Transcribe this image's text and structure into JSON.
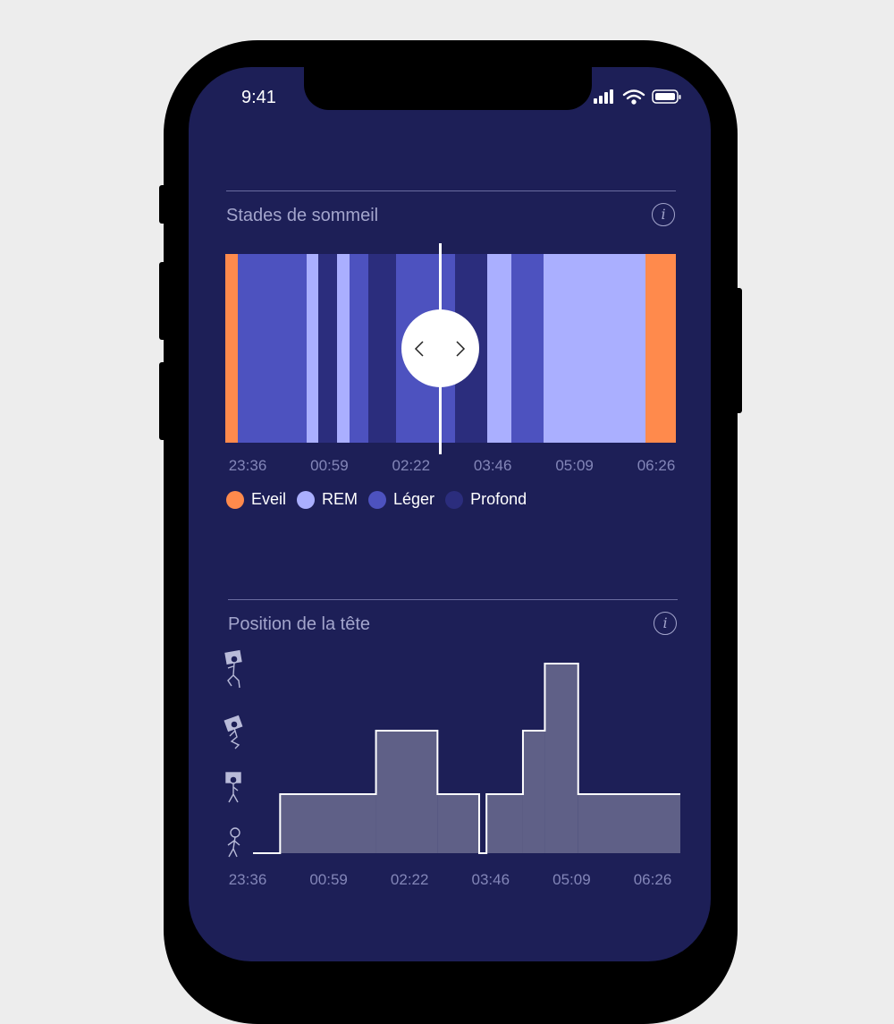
{
  "status_bar": {
    "time": "9:41"
  },
  "sleep_stages": {
    "title": "Stades de sommeil",
    "colors": {
      "Eveil": "#ff8a4c",
      "REM": "#aaafff",
      "Léger": "#4d52bf",
      "Profond": "#2b2d7d"
    },
    "start": "23:36",
    "end": "06:26",
    "segments": [
      {
        "stage": "Eveil",
        "start": "23:36"
      },
      {
        "stage": "Léger",
        "start": "23:47"
      },
      {
        "stage": "REM",
        "start": "00:50"
      },
      {
        "stage": "Profond",
        "start": "01:01"
      },
      {
        "stage": "REM",
        "start": "01:18"
      },
      {
        "stage": "Léger",
        "start": "01:29"
      },
      {
        "stage": "Profond",
        "start": "01:46"
      },
      {
        "stage": "Léger",
        "start": "02:11"
      },
      {
        "stage": "Profond",
        "start": "03:05"
      },
      {
        "stage": "REM",
        "start": "03:34"
      },
      {
        "stage": "Léger",
        "start": "03:56"
      },
      {
        "stage": "REM",
        "start": "04:26"
      },
      {
        "stage": "Eveil",
        "start": "05:58"
      }
    ],
    "ticks": [
      "23:36",
      "00:59",
      "02:22",
      "03:46",
      "05:09",
      "06:26"
    ],
    "legend": [
      "Eveil",
      "REM",
      "Léger",
      "Profond"
    ],
    "cursor_time": "03:00"
  },
  "head_position": {
    "title": "Position de la tête",
    "levels": [
      "standing",
      "flat",
      "tilted",
      "raised"
    ],
    "start": "23:36",
    "end": "06:26",
    "steps": [
      {
        "start": "23:36",
        "level": 0
      },
      {
        "start": "00:02",
        "level": 1
      },
      {
        "start": "01:34",
        "level": 2
      },
      {
        "start": "02:33",
        "level": 1
      },
      {
        "start": "03:13",
        "level": 0
      },
      {
        "start": "03:20",
        "level": 1
      },
      {
        "start": "03:55",
        "level": 2
      },
      {
        "start": "04:16",
        "level": 3
      },
      {
        "start": "04:48",
        "level": 1
      }
    ],
    "ticks": [
      "23:36",
      "00:59",
      "02:22",
      "03:46",
      "05:09",
      "06:26"
    ]
  }
}
